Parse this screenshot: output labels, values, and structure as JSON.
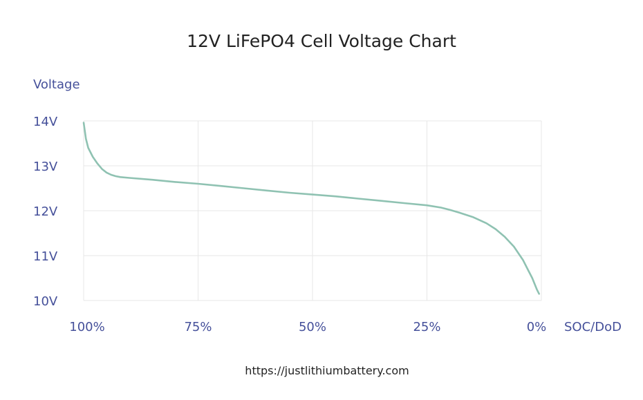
{
  "colors": {
    "axis_text": "#45509a",
    "grid": "#e7e7e7",
    "line": "#8fc2b2",
    "title": "#222222"
  },
  "footer": {
    "url": "https://justlithiumbattery.com"
  },
  "chart_data": {
    "type": "line",
    "title": "12V  LiFePO4 Cell Voltage Chart",
    "ylabel": "Voltage",
    "xlabel": "SOC/DoD",
    "x_ticks": [
      "100%",
      "75%",
      "50%",
      "25%",
      "0%"
    ],
    "y_ticks": [
      "14V",
      "13V",
      "12V",
      "11V",
      "10V"
    ],
    "xlim": [
      100,
      0
    ],
    "ylim": [
      10,
      14
    ],
    "grid": true,
    "series": [
      {
        "x": [
          100,
          99.5,
          99,
          98,
          97,
          96,
          95,
          94,
          93,
          92,
          90,
          85,
          80,
          75,
          70,
          65,
          60,
          55,
          50,
          45,
          40,
          35,
          30,
          25,
          22,
          20,
          18,
          15,
          12,
          10,
          8,
          6,
          4,
          3,
          2,
          1,
          0.5
        ],
        "y": [
          13.96,
          13.6,
          13.4,
          13.2,
          13.05,
          12.93,
          12.85,
          12.8,
          12.77,
          12.75,
          12.73,
          12.69,
          12.64,
          12.6,
          12.55,
          12.5,
          12.45,
          12.4,
          12.36,
          12.32,
          12.27,
          12.22,
          12.17,
          12.12,
          12.07,
          12.02,
          11.96,
          11.86,
          11.72,
          11.59,
          11.42,
          11.2,
          10.9,
          10.7,
          10.5,
          10.25,
          10.15
        ]
      }
    ]
  }
}
